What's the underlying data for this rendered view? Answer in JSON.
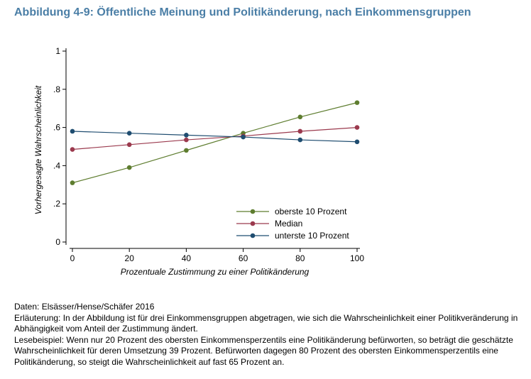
{
  "title": "Abbildung 4-9: Öffentliche Meinung und Politikänderung, nach Einkommensgruppen",
  "notes": {
    "source": "Daten: Elsässer/Hense/Schäfer 2016",
    "explanation": "Erläuterung: In der Abbildung ist für drei Einkommensgruppen abgetragen, wie sich die Wahrscheinlichkeit einer Politikveränderung in Abhängigkeit vom Anteil der Zustimmung ändert.",
    "example": "Lesebeispiel: Wenn nur 20 Prozent des obersten Einkommensperzentils eine Politikänderung befürworten, so beträgt die geschätzte Wahrscheinlichkeit für deren Umsetzung 39 Prozent. Befürworten dagegen 80 Prozent des obersten Einkommensperzentils eine Politikänderung, so steigt die Wahrscheinlichkeit auf fast 65 Prozent an."
  },
  "chart_data": {
    "type": "line",
    "xlabel": "Prozentuale Zustimmung zu einer Politikänderung",
    "ylabel": "Vorhergesagte Wahrscheinlichkeit",
    "x": [
      0,
      20,
      40,
      60,
      80,
      100
    ],
    "xlim": [
      0,
      100
    ],
    "ylim": [
      0,
      1
    ],
    "xticks": [
      0,
      20,
      40,
      60,
      80,
      100
    ],
    "xtick_labels": [
      "0",
      "20",
      "40",
      "60",
      "80",
      "100"
    ],
    "yticks": [
      0,
      0.2,
      0.4,
      0.6,
      0.8,
      1
    ],
    "ytick_labels": [
      "0",
      ".2",
      ".4",
      ".6",
      ".8",
      "1"
    ],
    "grid": false,
    "legend_position": "bottom-right",
    "series": [
      {
        "name": "oberste 10 Prozent",
        "color": "#5e7d2f",
        "values": [
          0.31,
          0.39,
          0.48,
          0.57,
          0.655,
          0.73
        ]
      },
      {
        "name": "Median",
        "color": "#9b3a4e",
        "values": [
          0.485,
          0.51,
          0.535,
          0.555,
          0.58,
          0.6
        ]
      },
      {
        "name": "unterste 10 Prozent",
        "color": "#1f4d70",
        "values": [
          0.58,
          0.57,
          0.56,
          0.55,
          0.535,
          0.525
        ]
      }
    ]
  }
}
